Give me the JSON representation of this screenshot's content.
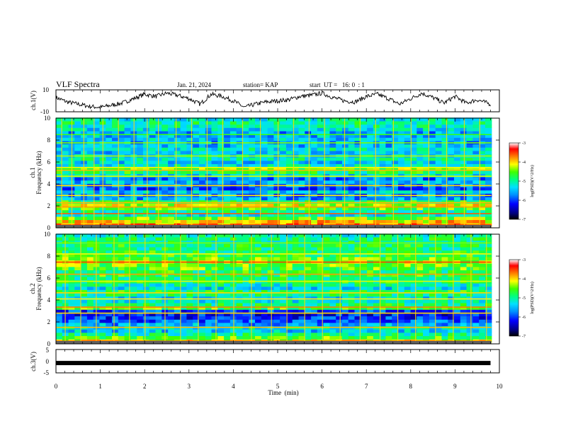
{
  "header": {
    "title": "VLF Spectra",
    "date": "Jan. 21, 2024",
    "station": "station= KAP",
    "start": "start  UT =   16: 0  : 1"
  },
  "colors": {
    "spectrogram_scale": [
      "#000080",
      "#0000ff",
      "#0080ff",
      "#00c8ff",
      "#00ffc0",
      "#00ff40",
      "#80ff00",
      "#ffff00",
      "#ff8000",
      "#ff0000",
      "#800000"
    ],
    "trace": "#000000"
  },
  "chart_data": [
    {
      "type": "line",
      "name": "ch1-waveform",
      "ylabel": "ch.1(V)",
      "ylim": [
        -10,
        10
      ],
      "yticks": [
        "10",
        "-10"
      ],
      "xlim": [
        0,
        10
      ],
      "x": [
        0,
        0.25,
        0.5,
        0.75,
        1.0,
        1.25,
        1.5,
        1.75,
        2.0,
        2.25,
        2.5,
        2.75,
        3.0,
        3.25,
        3.5,
        3.75,
        4.0,
        4.25,
        4.5,
        4.75,
        5.0,
        5.25,
        5.5,
        5.75,
        6.0,
        6.25,
        6.5,
        6.75,
        7.0,
        7.25,
        7.5,
        7.75,
        8.0,
        8.25,
        8.5,
        8.75,
        9.0,
        9.25,
        9.5,
        9.8
      ],
      "y": [
        3,
        -1,
        -3,
        -5,
        -6,
        -4,
        -2,
        2,
        6,
        4,
        7,
        5,
        2,
        -3,
        6,
        4,
        0,
        -6,
        -3,
        -1,
        0,
        1,
        4,
        5,
        7,
        3,
        0,
        -1,
        4,
        6,
        2,
        -3,
        2,
        7,
        3,
        -2,
        4,
        -2,
        1,
        -3
      ]
    },
    {
      "type": "heatmap",
      "name": "ch1-spectrogram",
      "ylabel": "ch.1\nFrequency (kHz)",
      "ylim": [
        0,
        10
      ],
      "yticks": [
        "0",
        "2",
        "4",
        "6",
        "8",
        "10"
      ],
      "xlim": [
        0,
        10
      ],
      "colorbar": {
        "label": "log(PSD)(V^2/Hz)",
        "range": [
          -7,
          -3
        ],
        "ticks": [
          "-3",
          "-4",
          "-5",
          "-6",
          "-7"
        ]
      },
      "bands": [
        {
          "f": 0.3,
          "v": -3.8
        },
        {
          "f": 0.6,
          "v": -4.0
        },
        {
          "f": 0.9,
          "v": -4.4
        },
        {
          "f": 1.2,
          "v": -5.2
        },
        {
          "f": 1.5,
          "v": -5.0
        },
        {
          "f": 1.8,
          "v": -4.6
        },
        {
          "f": 2.1,
          "v": -4.2
        },
        {
          "f": 2.4,
          "v": -4.8
        },
        {
          "f": 2.7,
          "v": -5.6
        },
        {
          "f": 3.0,
          "v": -5.8
        },
        {
          "f": 3.3,
          "v": -5.4
        },
        {
          "f": 3.6,
          "v": -5.9
        },
        {
          "f": 3.9,
          "v": -5.7
        },
        {
          "f": 4.2,
          "v": -5.5
        },
        {
          "f": 4.5,
          "v": -5.8
        },
        {
          "f": 4.8,
          "v": -5.3
        },
        {
          "f": 5.1,
          "v": -4.8
        },
        {
          "f": 5.4,
          "v": -4.5
        },
        {
          "f": 5.7,
          "v": -5.2
        },
        {
          "f": 6.0,
          "v": -5.4
        },
        {
          "f": 6.3,
          "v": -5.1
        },
        {
          "f": 6.6,
          "v": -5.3
        },
        {
          "f": 6.9,
          "v": -5.4
        },
        {
          "f": 7.2,
          "v": -5.2
        },
        {
          "f": 7.5,
          "v": -5.5
        },
        {
          "f": 7.8,
          "v": -5.6
        },
        {
          "f": 8.1,
          "v": -5.4
        },
        {
          "f": 8.4,
          "v": -5.5
        },
        {
          "f": 8.7,
          "v": -5.6
        },
        {
          "f": 9.0,
          "v": -5.3
        },
        {
          "f": 9.3,
          "v": -5.1
        },
        {
          "f": 9.6,
          "v": -5.0
        },
        {
          "f": 9.9,
          "v": -5.2
        }
      ],
      "lines": [
        {
          "f": 0.25,
          "v": -3.4
        },
        {
          "f": 1.3,
          "v": -3.6
        },
        {
          "f": 1.9,
          "v": -3.8
        },
        {
          "f": 2.3,
          "v": -3.9
        },
        {
          "f": 2.95,
          "v": -4.1
        },
        {
          "f": 3.85,
          "v": -4.0
        },
        {
          "f": 4.7,
          "v": -4.2
        },
        {
          "f": 5.25,
          "v": -3.9
        },
        {
          "f": 5.5,
          "v": -4.1
        },
        {
          "f": 6.55,
          "v": -4.3
        },
        {
          "f": 7.75,
          "v": -4.4
        },
        {
          "f": 8.5,
          "v": -4.6
        }
      ],
      "impulses": [
        0.12,
        0.35,
        0.62,
        0.85,
        1.05,
        1.4,
        1.75,
        2.05,
        2.3,
        2.7,
        3.05,
        3.4,
        3.75,
        4.2,
        4.6,
        5.0,
        5.35,
        5.7,
        6.05,
        6.5,
        6.85,
        7.2,
        7.6,
        8.0,
        8.4,
        8.8,
        9.2,
        9.55
      ]
    },
    {
      "type": "heatmap",
      "name": "ch2-spectrogram",
      "ylabel": "ch.2\nFrequency (kHz)",
      "ylim": [
        0,
        10
      ],
      "yticks": [
        "0",
        "2",
        "4",
        "6",
        "8",
        "10"
      ],
      "xlim": [
        0,
        10
      ],
      "colorbar": {
        "label": "log(PSD)(V^2/Hz)",
        "range": [
          -7,
          -3
        ],
        "ticks": [
          "-3",
          "-4",
          "-5",
          "-6",
          "-7"
        ]
      },
      "bands": [
        {
          "f": 0.3,
          "v": -4.2
        },
        {
          "f": 0.6,
          "v": -4.6
        },
        {
          "f": 0.9,
          "v": -5.0
        },
        {
          "f": 1.2,
          "v": -5.4
        },
        {
          "f": 1.5,
          "v": -5.2
        },
        {
          "f": 1.8,
          "v": -5.6
        },
        {
          "f": 2.1,
          "v": -5.9
        },
        {
          "f": 2.4,
          "v": -6.1
        },
        {
          "f": 2.7,
          "v": -6.2
        },
        {
          "f": 3.0,
          "v": -6.0
        },
        {
          "f": 3.3,
          "v": -4.6
        },
        {
          "f": 3.6,
          "v": -4.9
        },
        {
          "f": 3.9,
          "v": -5.2
        },
        {
          "f": 4.2,
          "v": -5.3
        },
        {
          "f": 4.5,
          "v": -5.0
        },
        {
          "f": 4.8,
          "v": -4.8
        },
        {
          "f": 5.1,
          "v": -5.3
        },
        {
          "f": 5.4,
          "v": -5.1
        },
        {
          "f": 5.7,
          "v": -4.8
        },
        {
          "f": 6.0,
          "v": -4.9
        },
        {
          "f": 6.3,
          "v": -4.7
        },
        {
          "f": 6.6,
          "v": -4.8
        },
        {
          "f": 6.9,
          "v": -4.6
        },
        {
          "f": 7.2,
          "v": -4.5
        },
        {
          "f": 7.5,
          "v": -4.3
        },
        {
          "f": 7.8,
          "v": -4.5
        },
        {
          "f": 8.1,
          "v": -4.7
        },
        {
          "f": 8.4,
          "v": -4.8
        },
        {
          "f": 8.7,
          "v": -4.9
        },
        {
          "f": 9.0,
          "v": -4.8
        },
        {
          "f": 9.3,
          "v": -5.0
        },
        {
          "f": 9.6,
          "v": -4.9
        },
        {
          "f": 9.9,
          "v": -5.1
        }
      ],
      "lines": [
        {
          "f": 0.25,
          "v": -3.6
        },
        {
          "f": 1.5,
          "v": -3.9
        },
        {
          "f": 2.8,
          "v": -4.0
        },
        {
          "f": 3.35,
          "v": -3.7
        },
        {
          "f": 4.1,
          "v": -4.1
        },
        {
          "f": 4.65,
          "v": -4.0
        },
        {
          "f": 5.7,
          "v": -4.2
        },
        {
          "f": 6.35,
          "v": -3.8
        },
        {
          "f": 7.45,
          "v": -3.5
        },
        {
          "f": 8.2,
          "v": -4.1
        },
        {
          "f": 9.2,
          "v": -4.4
        }
      ],
      "impulses": [
        0.2,
        0.55,
        0.9,
        1.3,
        1.65,
        2.0,
        2.45,
        2.8,
        3.2,
        3.6,
        4.0,
        4.4,
        4.85,
        5.2,
        5.6,
        6.0,
        6.4,
        6.85,
        7.3,
        7.7,
        8.1,
        8.55,
        8.95,
        9.35,
        9.7
      ]
    },
    {
      "type": "line",
      "name": "ch3-waveform",
      "ylabel": "ch.3(V)",
      "ylim": [
        -5,
        5
      ],
      "yticks": [
        "5",
        "0",
        "-5"
      ],
      "xlim": [
        0,
        10
      ],
      "xlabel": "Time  (min)",
      "xticks": [
        "0",
        "1",
        "2",
        "3",
        "4",
        "5",
        "6",
        "7",
        "8",
        "9",
        "10"
      ],
      "x": [
        0,
        9.8
      ],
      "y": [
        0,
        0
      ]
    }
  ]
}
